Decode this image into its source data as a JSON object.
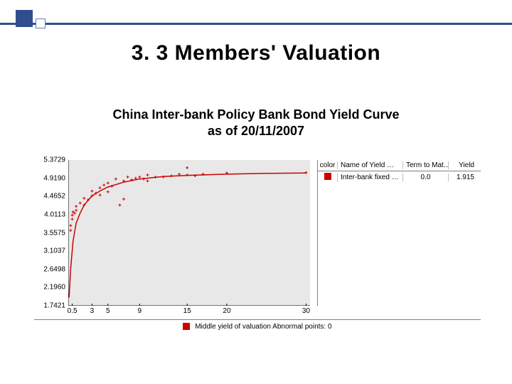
{
  "title": "3. 3 Members'   Valuation",
  "subtitle_l1": "China Inter-bank Policy Bank Bond Yield Curve",
  "subtitle_l2": "as of 20/11/2007",
  "chart": {
    "type": "scatter+line",
    "background_color": "#e8e8e8",
    "axis_color": "#000000",
    "curve_color": "#cc0000",
    "point_color": "#cc0000",
    "y_ticks": [
      "5.3729",
      "4.9190",
      "4.4652",
      "4.0113",
      "3.5575",
      "3.1037",
      "2.6498",
      "2.1960",
      "1.7421"
    ],
    "ymin": 1.7421,
    "ymax": 5.3729,
    "x_ticks": [
      {
        "v": 0.5,
        "label": "0.5"
      },
      {
        "v": 3,
        "label": "3"
      },
      {
        "v": 5,
        "label": "5"
      },
      {
        "v": 9,
        "label": "9"
      },
      {
        "v": 15,
        "label": "15"
      },
      {
        "v": 20,
        "label": "20"
      },
      {
        "v": 30,
        "label": "30"
      }
    ],
    "xmin": 0.0,
    "xmax": 30.5,
    "curve": [
      {
        "x": 0.1,
        "y": 1.95
      },
      {
        "x": 0.3,
        "y": 2.65
      },
      {
        "x": 0.6,
        "y": 3.35
      },
      {
        "x": 1.0,
        "y": 3.8
      },
      {
        "x": 1.5,
        "y": 4.05
      },
      {
        "x": 2.0,
        "y": 4.25
      },
      {
        "x": 3.0,
        "y": 4.48
      },
      {
        "x": 4.0,
        "y": 4.6
      },
      {
        "x": 5.0,
        "y": 4.7
      },
      {
        "x": 7.0,
        "y": 4.82
      },
      {
        "x": 9.0,
        "y": 4.9
      },
      {
        "x": 12.0,
        "y": 4.96
      },
      {
        "x": 15.0,
        "y": 4.99
      },
      {
        "x": 20.0,
        "y": 5.02
      },
      {
        "x": 25.0,
        "y": 5.04
      },
      {
        "x": 30.0,
        "y": 5.05
      }
    ],
    "points": [
      {
        "x": 0.3,
        "y": 3.62
      },
      {
        "x": 0.3,
        "y": 3.74
      },
      {
        "x": 0.5,
        "y": 3.9
      },
      {
        "x": 0.5,
        "y": 4.0
      },
      {
        "x": 0.6,
        "y": 4.08
      },
      {
        "x": 0.8,
        "y": 4.05
      },
      {
        "x": 1.0,
        "y": 4.12
      },
      {
        "x": 1.0,
        "y": 4.22
      },
      {
        "x": 1.5,
        "y": 4.3
      },
      {
        "x": 2.0,
        "y": 4.25
      },
      {
        "x": 2.0,
        "y": 4.42
      },
      {
        "x": 2.5,
        "y": 4.38
      },
      {
        "x": 3.0,
        "y": 4.48
      },
      {
        "x": 3.0,
        "y": 4.6
      },
      {
        "x": 3.5,
        "y": 4.55
      },
      {
        "x": 4.0,
        "y": 4.5
      },
      {
        "x": 4.0,
        "y": 4.68
      },
      {
        "x": 4.5,
        "y": 4.75
      },
      {
        "x": 5.0,
        "y": 4.58
      },
      {
        "x": 5.0,
        "y": 4.8
      },
      {
        "x": 5.5,
        "y": 4.72
      },
      {
        "x": 6.0,
        "y": 4.9
      },
      {
        "x": 6.5,
        "y": 4.25
      },
      {
        "x": 7.0,
        "y": 4.85
      },
      {
        "x": 7.0,
        "y": 4.4
      },
      {
        "x": 7.5,
        "y": 4.95
      },
      {
        "x": 8.0,
        "y": 4.88
      },
      {
        "x": 8.5,
        "y": 4.92
      },
      {
        "x": 9.0,
        "y": 4.95
      },
      {
        "x": 9.5,
        "y": 4.9
      },
      {
        "x": 10.0,
        "y": 5.0
      },
      {
        "x": 10.0,
        "y": 4.85
      },
      {
        "x": 11.0,
        "y": 4.95
      },
      {
        "x": 12.0,
        "y": 4.95
      },
      {
        "x": 13.0,
        "y": 4.98
      },
      {
        "x": 14.0,
        "y": 5.02
      },
      {
        "x": 15.0,
        "y": 5.0
      },
      {
        "x": 15.0,
        "y": 5.18
      },
      {
        "x": 16.0,
        "y": 4.98
      },
      {
        "x": 17.0,
        "y": 5.02
      },
      {
        "x": 20.0,
        "y": 5.05
      },
      {
        "x": 30.0,
        "y": 5.06
      }
    ],
    "y_label_fontsize": 10,
    "x_label_fontsize": 10
  },
  "legend": {
    "headers": {
      "color": "color",
      "name": "Name of Yield …",
      "term": "Term to Mat…",
      "yield": "Yield"
    },
    "rows": [
      {
        "color": "#cc0000",
        "name": "Inter-bank fixed …",
        "term": "0.0",
        "yield": "1.915"
      }
    ]
  },
  "footer": {
    "swatch_color": "#cc0000",
    "text": "Middle yield of valuation  Abnormal points: 0"
  }
}
